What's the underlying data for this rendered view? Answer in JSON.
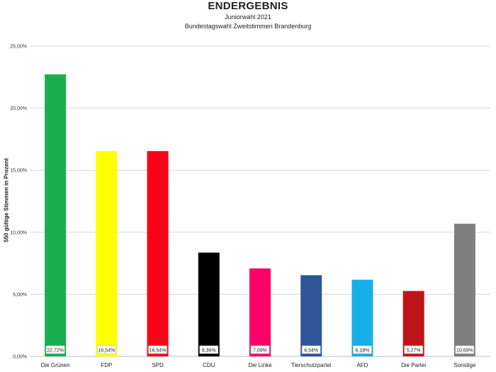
{
  "chart_data": {
    "type": "bar",
    "title": "ENDERGEBNIS",
    "subtitle": "Juniorwahl 2021",
    "subtitle2": "Bundestagswahl Zweitstimmen Brandenburg",
    "ylabel": "550 gültige Stimmen in Prozent",
    "ylim": [
      0,
      25
    ],
    "yticks": [
      0,
      5,
      10,
      15,
      20,
      25
    ],
    "ytick_labels": [
      "0,00%",
      "5,00%",
      "10,00%",
      "15,00%",
      "20,00%",
      "25,00%"
    ],
    "grid": true,
    "categories": [
      "Die Grünen",
      "FDP",
      "SPD",
      "CDU",
      "Die Linke",
      "Tierschutzpartei",
      "AFD",
      "Die Partei",
      "Sonstige"
    ],
    "values": [
      22.72,
      16.54,
      16.54,
      8.36,
      7.09,
      6.54,
      6.18,
      5.27,
      10.69
    ],
    "data_labels": [
      "22,72%",
      "16,54%",
      "16,54%",
      "8,36%",
      "7,09%",
      "6,54%",
      "6,18%",
      "5,27%",
      "10,69%"
    ],
    "colors": [
      "#1aae4f",
      "#ffff00",
      "#ff0019",
      "#000000",
      "#ff0066",
      "#2e5597",
      "#17aee9",
      "#c0141b",
      "#7f7f7f"
    ]
  }
}
